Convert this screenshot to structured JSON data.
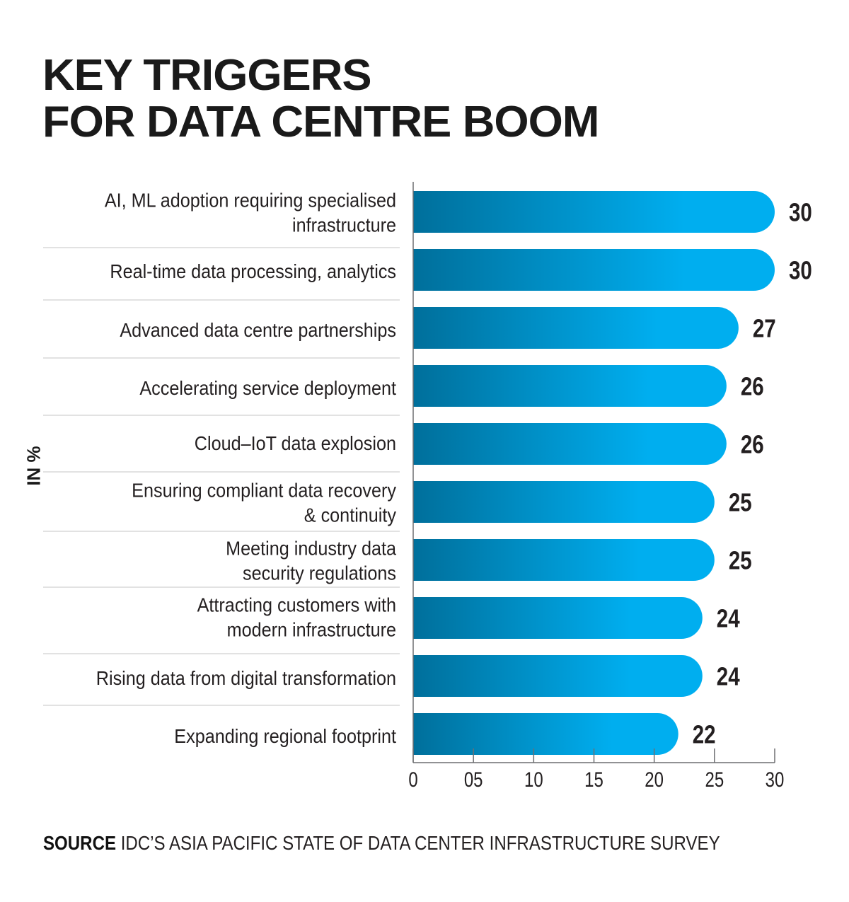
{
  "title_lines": [
    "KEY TRIGGERS",
    "FOR DATA CENTRE BOOM"
  ],
  "y_axis_unit_label": "IN %",
  "source": {
    "prefix": "SOURCE",
    "text": "IDC’S ASIA PACIFIC STATE OF DATA CENTER INFRASTRUCTURE SURVEY"
  },
  "colors": {
    "bar_gradient_start": "#006f9b",
    "bar_gradient_end": "#00aeef",
    "text": "#231f20",
    "divider": "#d9d9d9",
    "axis": "#6d6e71"
  },
  "chart_data": {
    "type": "bar",
    "orientation": "horizontal",
    "title": "KEY TRIGGERS FOR DATA CENTRE BOOM",
    "xlabel": "",
    "ylabel": "IN %",
    "xlim": [
      0,
      30
    ],
    "x_ticks": [
      "0",
      "05",
      "10",
      "15",
      "20",
      "25",
      "30"
    ],
    "x_tick_values": [
      0,
      5,
      10,
      15,
      20,
      25,
      30
    ],
    "grid": false,
    "legend": "none",
    "categories": [
      [
        "AI, ML adoption requiring specialised",
        "infrastructure"
      ],
      [
        "Real-time data processing, analytics"
      ],
      [
        "Advanced data centre partnerships"
      ],
      [
        "Accelerating service deployment"
      ],
      [
        "Cloud–IoT data explosion"
      ],
      [
        "Ensuring compliant data recovery",
        "& continuity"
      ],
      [
        "Meeting industry data",
        "security regulations"
      ],
      [
        "Attracting customers with",
        "modern infrastructure"
      ],
      [
        "Rising data from digital transformation"
      ],
      [
        "Expanding regional footprint"
      ]
    ],
    "values": [
      30,
      30,
      27,
      26,
      26,
      25,
      25,
      24,
      24,
      22
    ],
    "value_labels": [
      "30",
      "30",
      "27",
      "26",
      "26",
      "25",
      "25",
      "24",
      "24",
      "22"
    ]
  }
}
